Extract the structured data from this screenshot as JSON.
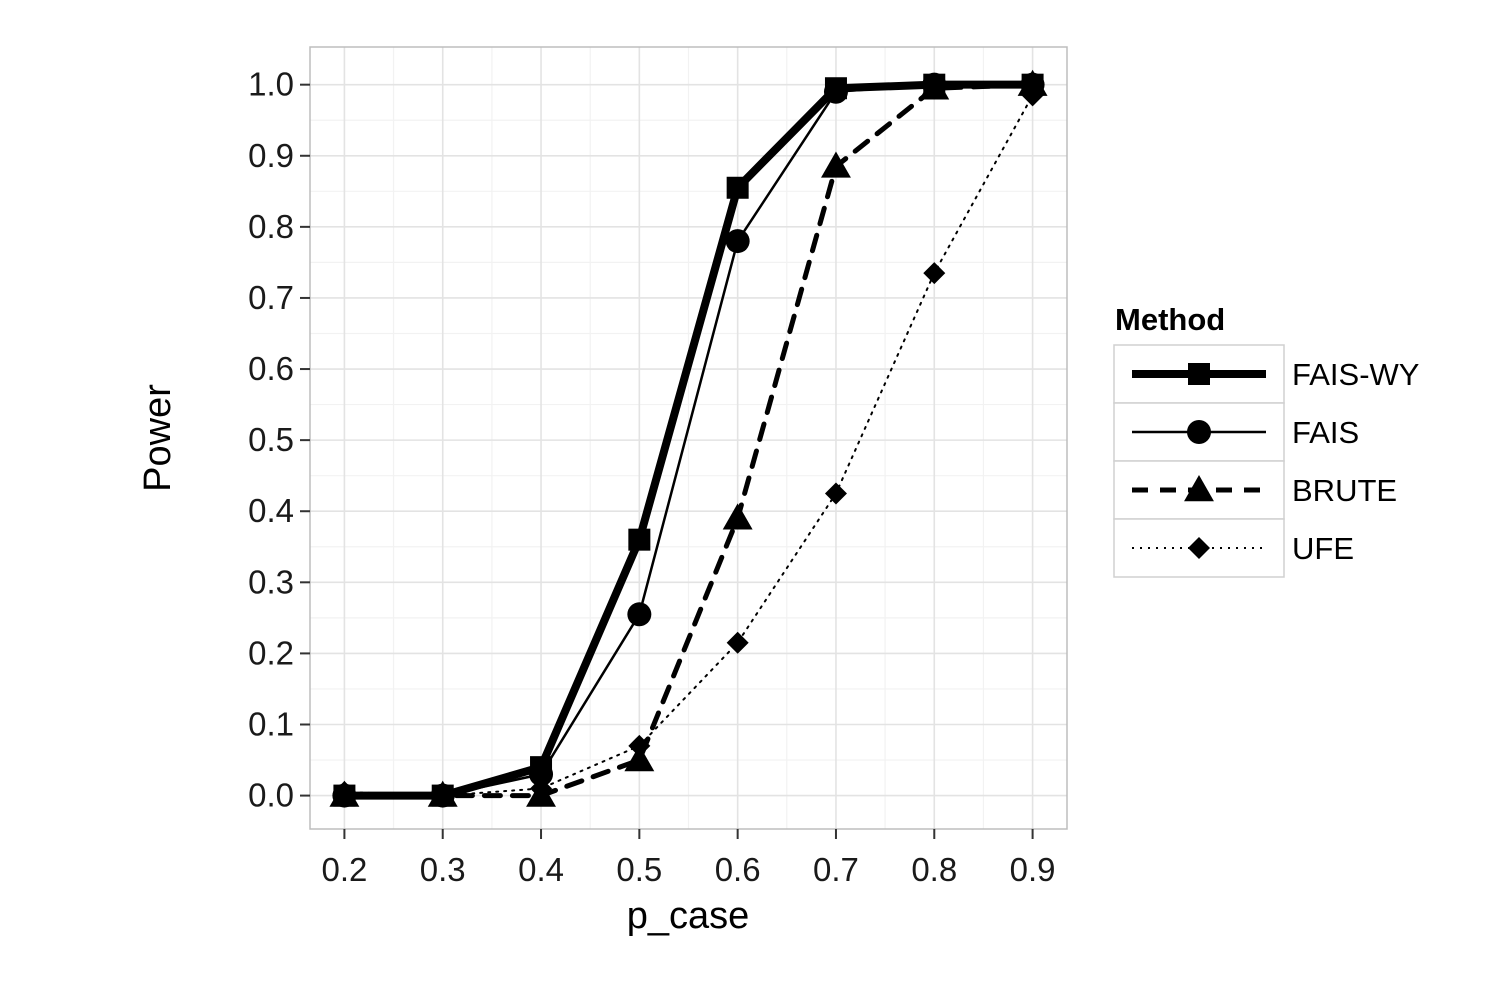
{
  "chart_data": {
    "type": "line",
    "xlabel": "p_case",
    "ylabel": "Power",
    "x": [
      0.2,
      0.3,
      0.4,
      0.5,
      0.6,
      0.7,
      0.8,
      0.9
    ],
    "x_ticks": [
      "0.2",
      "0.3",
      "0.4",
      "0.5",
      "0.6",
      "0.7",
      "0.8",
      "0.9"
    ],
    "y_ticks": [
      "0.0",
      "0.1",
      "0.2",
      "0.3",
      "0.4",
      "0.5",
      "0.6",
      "0.7",
      "0.8",
      "0.9",
      "1.0"
    ],
    "xlim": [
      0.165,
      0.935
    ],
    "ylim": [
      -0.047,
      1.053
    ],
    "grid": true,
    "legend": {
      "title": "Method",
      "placement": "right"
    },
    "series": [
      {
        "name": "FAIS-WY",
        "marker": "square",
        "line": "solid-thick",
        "color": "#000000",
        "values": [
          0.0,
          0.0,
          0.04,
          0.36,
          0.855,
          0.995,
          1.0,
          1.0
        ]
      },
      {
        "name": "FAIS",
        "marker": "circle",
        "line": "solid-thin",
        "color": "#000000",
        "values": [
          0.0,
          0.0,
          0.03,
          0.255,
          0.78,
          0.99,
          1.0,
          1.0
        ]
      },
      {
        "name": "BRUTE",
        "marker": "triangle",
        "line": "dashed",
        "color": "#000000",
        "values": [
          0.0,
          0.0,
          0.0,
          0.05,
          0.39,
          0.885,
          0.995,
          1.0
        ]
      },
      {
        "name": "UFE",
        "marker": "diamond",
        "line": "dotted",
        "color": "#000000",
        "values": [
          0.005,
          0.0,
          0.01,
          0.07,
          0.215,
          0.425,
          0.735,
          0.985
        ]
      }
    ]
  }
}
